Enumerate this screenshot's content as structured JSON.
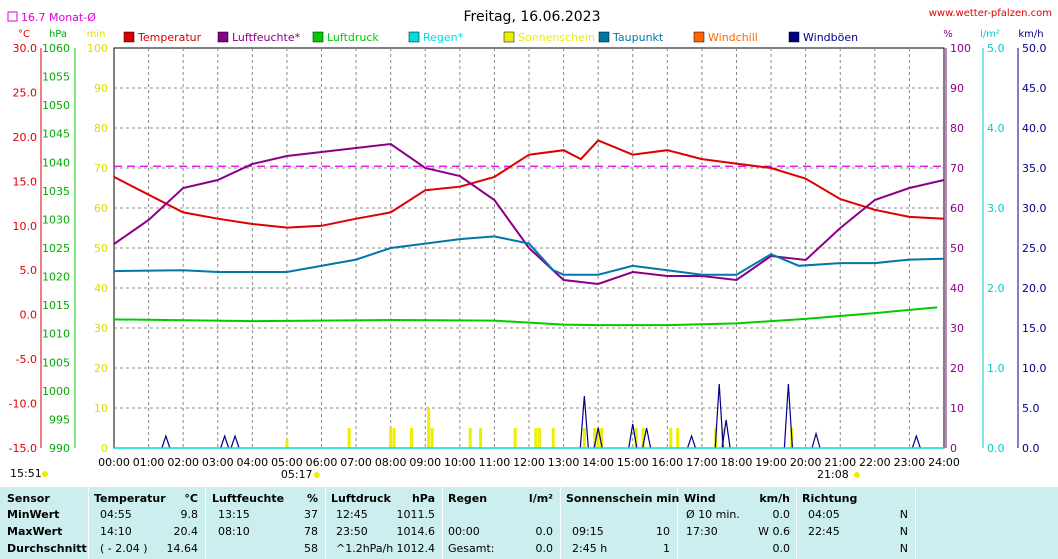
{
  "header": {
    "title": "Freitag, 16.06.2023",
    "site": "www.wetter-pfalzen.com",
    "month_avg_label": "16.7 Monat-Ø",
    "time_now": "15:51",
    "sunrise": "05:17",
    "sunset": "21:08"
  },
  "units": {
    "temp": "°C",
    "press": "hPa",
    "sun": "min",
    "hum": "%",
    "rain": "l/m²",
    "wind": "km/h"
  },
  "legend": [
    {
      "name": "Temperatur",
      "color": "#dd0000"
    },
    {
      "name": "Luftfeuchte*",
      "color": "#880088"
    },
    {
      "name": "Luftdruck",
      "color": "#00cc00"
    },
    {
      "name": "Regen*",
      "color": "#00dddd"
    },
    {
      "name": "Sonnenschein",
      "color": "#eeee00"
    },
    {
      "name": "Taupunkt",
      "color": "#0077aa"
    },
    {
      "name": "Windchill",
      "color": "#ff6600"
    },
    {
      "name": "Windböen",
      "color": "#000088"
    }
  ],
  "chart_data": {
    "type": "line",
    "x_ticks": [
      "00:00",
      "01:00",
      "02:00",
      "03:00",
      "04:00",
      "05:00",
      "06:00",
      "07:00",
      "08:00",
      "09:00",
      "10:00",
      "11:00",
      "12:00",
      "13:00",
      "14:00",
      "15:00",
      "16:00",
      "17:00",
      "18:00",
      "19:00",
      "20:00",
      "21:00",
      "22:00",
      "23:00",
      "24:00"
    ],
    "axes": {
      "temp": {
        "ticks": [
          "30.0",
          "25.0",
          "20.0",
          "15.0",
          "10.0",
          "5.0",
          "0.0",
          "-5.0",
          "-10.0",
          "-15.0"
        ],
        "min": -15,
        "max": 30
      },
      "press": {
        "ticks": [
          "1060",
          "1055",
          "1050",
          "1045",
          "1040",
          "1035",
          "1030",
          "1025",
          "1020",
          "1015",
          "1010",
          "1005",
          "1000",
          "995",
          "990"
        ],
        "min": 990,
        "max": 1060
      },
      "sun": {
        "ticks": [
          "100",
          "90",
          "80",
          "70",
          "60",
          "50",
          "40",
          "30",
          "20",
          "10",
          "0"
        ],
        "min": 0,
        "max": 100
      },
      "hum": {
        "ticks": [
          "100",
          "90",
          "80",
          "70",
          "60",
          "50",
          "40",
          "30",
          "20",
          "10",
          "0"
        ],
        "min": 0,
        "max": 100
      },
      "rain": {
        "ticks": [
          "5.0",
          "4.0",
          "3.0",
          "2.0",
          "1.0",
          "0.0"
        ],
        "min": 0,
        "max": 5
      },
      "wind": {
        "ticks": [
          "50.0",
          "45.0",
          "40.0",
          "35.0",
          "30.0",
          "25.0",
          "20.0",
          "15.0",
          "10.0",
          "5.0",
          "0.0"
        ],
        "min": 0,
        "max": 50
      }
    },
    "month_avg_temp": 16.7,
    "series": [
      {
        "name": "Temperatur",
        "axis": "temp",
        "color": "#dd0000",
        "points": [
          [
            0,
            15.5
          ],
          [
            1,
            13.5
          ],
          [
            2,
            11.5
          ],
          [
            3,
            10.8
          ],
          [
            4,
            10.2
          ],
          [
            5,
            9.8
          ],
          [
            6,
            10.0
          ],
          [
            7,
            10.8
          ],
          [
            8,
            11.5
          ],
          [
            9,
            14.0
          ],
          [
            10,
            14.4
          ],
          [
            11,
            15.5
          ],
          [
            12,
            18.0
          ],
          [
            13,
            18.5
          ],
          [
            13.5,
            17.5
          ],
          [
            14,
            19.6
          ],
          [
            15,
            18.0
          ],
          [
            16,
            18.5
          ],
          [
            17,
            17.5
          ],
          [
            18,
            17.0
          ],
          [
            19,
            16.5
          ],
          [
            20,
            15.3
          ],
          [
            21,
            13.0
          ],
          [
            22,
            11.8
          ],
          [
            23,
            11.0
          ],
          [
            24,
            10.8
          ]
        ]
      },
      {
        "name": "Luftfeuchte*",
        "axis": "hum",
        "color": "#880088",
        "points": [
          [
            0,
            51
          ],
          [
            1,
            57
          ],
          [
            2,
            65
          ],
          [
            3,
            67
          ],
          [
            4,
            71
          ],
          [
            5,
            73
          ],
          [
            6,
            74
          ],
          [
            7,
            75
          ],
          [
            8,
            76
          ],
          [
            9,
            70
          ],
          [
            10,
            68
          ],
          [
            11,
            62
          ],
          [
            12,
            50
          ],
          [
            13,
            42
          ],
          [
            14,
            41
          ],
          [
            15,
            44
          ],
          [
            16,
            43
          ],
          [
            17,
            43
          ],
          [
            18,
            42
          ],
          [
            19,
            48
          ],
          [
            20,
            47
          ],
          [
            21,
            55
          ],
          [
            22,
            62
          ],
          [
            23,
            65
          ],
          [
            24,
            67
          ]
        ]
      },
      {
        "name": "Luftdruck",
        "axis": "press",
        "color": "#00cc00",
        "points": [
          [
            0,
            1012.5
          ],
          [
            4,
            1012.2
          ],
          [
            8,
            1012.4
          ],
          [
            11,
            1012.3
          ],
          [
            13,
            1011.6
          ],
          [
            14,
            1011.5
          ],
          [
            16,
            1011.5
          ],
          [
            18,
            1011.8
          ],
          [
            20,
            1012.6
          ],
          [
            22,
            1013.6
          ],
          [
            23.8,
            1014.6
          ]
        ]
      },
      {
        "name": "Taupunkt",
        "axis": "temp",
        "color": "#0077aa",
        "points": [
          [
            0,
            4.9
          ],
          [
            2,
            5.0
          ],
          [
            3,
            4.8
          ],
          [
            5,
            4.8
          ],
          [
            7,
            6.2
          ],
          [
            8,
            7.5
          ],
          [
            9,
            8.0
          ],
          [
            10,
            8.5
          ],
          [
            11,
            8.8
          ],
          [
            12,
            8.0
          ],
          [
            12.7,
            5.0
          ],
          [
            13,
            4.5
          ],
          [
            14,
            4.5
          ],
          [
            15,
            5.5
          ],
          [
            16,
            5.0
          ],
          [
            17,
            4.5
          ],
          [
            18,
            4.5
          ],
          [
            19,
            6.8
          ],
          [
            19.8,
            5.5
          ],
          [
            21,
            5.8
          ],
          [
            22,
            5.8
          ],
          [
            23,
            6.2
          ],
          [
            24,
            6.3
          ]
        ]
      },
      {
        "name": "Regen*",
        "axis": "rain",
        "color": "#00dddd",
        "points": [
          [
            0,
            0.0
          ],
          [
            24,
            0.0
          ]
        ]
      }
    ],
    "sunshine_bars": [
      [
        5.0,
        2
      ],
      [
        6.8,
        5
      ],
      [
        8.0,
        5
      ],
      [
        8.1,
        5
      ],
      [
        8.6,
        5
      ],
      [
        9.1,
        10
      ],
      [
        9.2,
        5
      ],
      [
        10.3,
        5
      ],
      [
        10.6,
        5
      ],
      [
        11.6,
        5
      ],
      [
        12.2,
        5
      ],
      [
        12.3,
        5
      ],
      [
        12.7,
        5
      ],
      [
        13.6,
        5
      ],
      [
        13.9,
        5
      ],
      [
        14.0,
        5
      ],
      [
        14.1,
        5
      ],
      [
        15.1,
        5
      ],
      [
        15.3,
        5
      ],
      [
        16.1,
        5
      ],
      [
        16.3,
        5
      ],
      [
        17.4,
        5
      ],
      [
        17.6,
        5
      ],
      [
        19.6,
        5
      ]
    ],
    "gusts": [
      [
        1.5,
        1.5
      ],
      [
        3.2,
        1.5
      ],
      [
        3.5,
        1.5
      ],
      [
        13.6,
        6.5
      ],
      [
        14.0,
        2.5
      ],
      [
        15.0,
        3.0
      ],
      [
        15.4,
        2.5
      ],
      [
        16.7,
        1.5
      ],
      [
        17.5,
        8.0
      ],
      [
        17.7,
        3.5
      ],
      [
        19.5,
        8.0
      ],
      [
        20.3,
        1.8
      ],
      [
        23.2,
        1.5
      ]
    ]
  },
  "stats": {
    "headers": {
      "sensor": "Sensor",
      "temp": "Temperatur",
      "temp_unit": "°C",
      "hum": "Luftfeuchte",
      "hum_unit": "%",
      "press": "Luftdruck",
      "press_unit": "hPa",
      "rain": "Regen",
      "rain_unit": "l/m²",
      "sun": "Sonnenschein min",
      "wind": "Wind",
      "wind_unit": "km/h",
      "dir": "Richtung"
    },
    "rows": [
      {
        "label": "MinWert",
        "temp_t": "04:55",
        "temp_v": "9.8",
        "hum_t": "13:15",
        "hum_v": "37",
        "press_t": "12:45",
        "press_v": "1011.5",
        "rain_t": "",
        "rain_v": "",
        "sun_t": "",
        "sun_v": "",
        "wind_t": "Ø 10 min.",
        "wind_v": "0.0",
        "dir_t": "04:05",
        "dir_v": "N"
      },
      {
        "label": "MaxWert",
        "temp_t": "14:10",
        "temp_v": "20.4",
        "hum_t": "08:10",
        "hum_v": "78",
        "press_t": "23:50",
        "press_v": "1014.6",
        "rain_t": "00:00",
        "rain_v": "0.0",
        "sun_t": "09:15",
        "sun_v": "10",
        "wind_t": "17:30",
        "wind_v": "W 0.6",
        "dir_t": "22:45",
        "dir_v": "N"
      },
      {
        "label": "Durchschnitt",
        "temp_t": "( - 2.04 )",
        "temp_v": "14.64",
        "hum_t": "",
        "hum_v": "58",
        "press_t": "^1.2hPa/h",
        "press_v": "1012.4",
        "rain_t": "Gesamt:",
        "rain_v": "0.0",
        "sun_t": "2:45 h",
        "sun_v": "1",
        "wind_t": "",
        "wind_v": "0.0",
        "dir_t": "",
        "dir_v": "N"
      }
    ]
  }
}
